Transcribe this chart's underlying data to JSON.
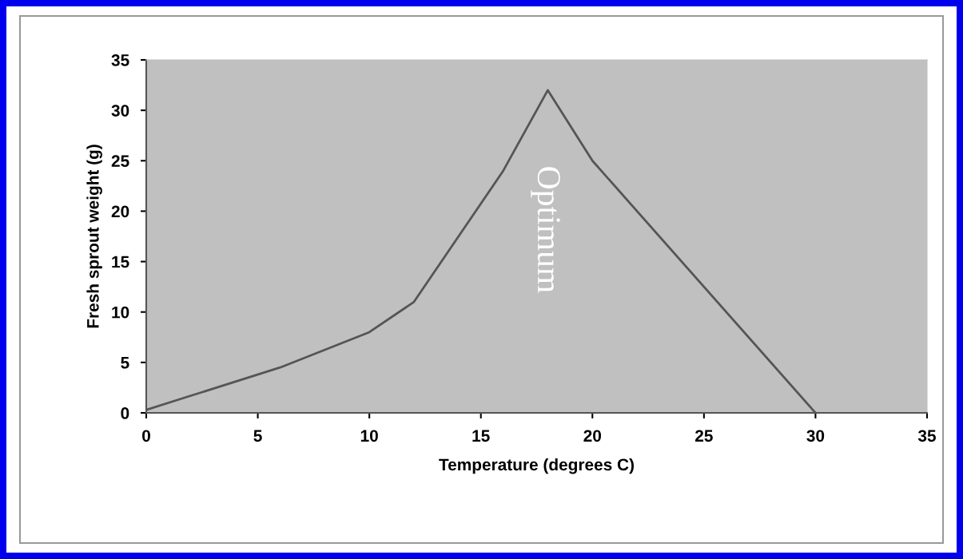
{
  "chart_data": {
    "type": "line",
    "xlabel": "Temperature (degrees C)",
    "ylabel": "Fresh sprout weight (g)",
    "x": [
      0,
      2,
      6,
      10,
      12,
      16,
      18,
      20,
      30
    ],
    "series": [
      {
        "color": "#555555",
        "values": [
          0.3,
          1.7,
          4.5,
          8,
          11,
          24,
          32,
          25,
          0
        ]
      }
    ],
    "xlim": [
      0,
      35
    ],
    "xticks": [
      0,
      5,
      10,
      15,
      20,
      25,
      30,
      35
    ],
    "ylim": [
      0,
      35
    ],
    "yticks": [
      0,
      5,
      10,
      15,
      20,
      25,
      30,
      35
    ],
    "grid": false,
    "legend": false,
    "marker": "none",
    "line_style": "solid",
    "annotations": [
      "Optimum"
    ]
  }
}
